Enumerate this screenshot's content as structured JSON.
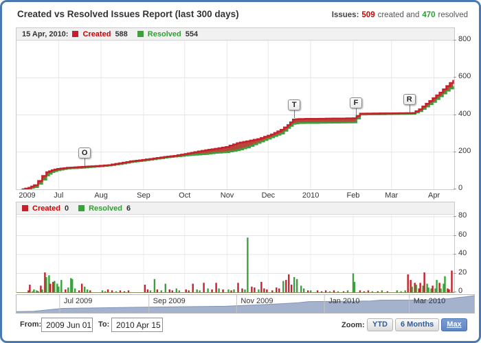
{
  "header": {
    "title": "Created vs Resolved Issues Report (last 300 days)",
    "summary_prefix": "Issues:",
    "created_count": "509",
    "summary_mid": "created and",
    "resolved_count": "470",
    "summary_suffix": "resolved"
  },
  "main_chart": {
    "legend_date": "15 Apr, 2010:",
    "created_label": "Created",
    "created_value": "588",
    "resolved_label": "Resolved",
    "resolved_value": "554"
  },
  "lower_chart": {
    "created_label": "Created",
    "created_value": "0",
    "resolved_label": "Resolved",
    "resolved_value": "6"
  },
  "controls": {
    "from_label": "From:",
    "from_value": "2009 Jun 01",
    "to_label": "To:",
    "to_value": "2010 Apr 15",
    "zoom_label": "Zoom:",
    "zoom_buttons": [
      {
        "label": "YTD",
        "active": false
      },
      {
        "label": "6 Months",
        "active": false
      },
      {
        "label": "Max",
        "active": true
      }
    ]
  },
  "colors": {
    "frame": "#4879b2",
    "created_line": "#c8202b",
    "created_text": "#cc0000",
    "resolved_line": "#3ba13c",
    "resolved_text": "#2f9e33",
    "band_fill": "#b5483b",
    "nav_fill": "#a4b2ce",
    "nav_line": "#8094bb",
    "grid": "#e3e3e3"
  },
  "chart_data": [
    {
      "type": "line",
      "title": "Created vs Resolved cumulative (day offset from 2009 Jun 01)",
      "ylim": [
        0,
        800
      ],
      "yticks": [
        0,
        200,
        400,
        600,
        800
      ],
      "xticks": [
        {
          "label": "2009",
          "day": 7
        },
        {
          "label": "Jul",
          "day": 30
        },
        {
          "label": "Aug",
          "day": 61
        },
        {
          "label": "Sep",
          "day": 92
        },
        {
          "label": "Oct",
          "day": 122
        },
        {
          "label": "Nov",
          "day": 153
        },
        {
          "label": "Dec",
          "day": 183
        },
        {
          "label": "2010",
          "day": 214
        },
        {
          "label": "Feb",
          "day": 245
        },
        {
          "label": "Mar",
          "day": 273
        },
        {
          "label": "Apr",
          "day": 304
        }
      ],
      "grid_month_days": [
        30,
        61,
        92,
        122,
        153,
        183,
        214,
        245,
        273,
        304
      ],
      "series": [
        {
          "name": "Created",
          "points": [
            [
              3,
              0
            ],
            [
              8,
              8
            ],
            [
              12,
              22
            ],
            [
              15,
              45
            ],
            [
              18,
              72
            ],
            [
              21,
              92
            ],
            [
              25,
              103
            ],
            [
              29,
              110
            ],
            [
              36,
              116
            ],
            [
              47,
              121
            ],
            [
              54,
              124
            ],
            [
              60,
              127
            ],
            [
              66,
              130
            ],
            [
              74,
              140
            ],
            [
              82,
              150
            ],
            [
              91,
              158
            ],
            [
              99,
              166
            ],
            [
              107,
              174
            ],
            [
              114,
              180
            ],
            [
              122,
              190
            ],
            [
              129,
              200
            ],
            [
              137,
              210
            ],
            [
              144,
              218
            ],
            [
              152,
              228
            ],
            [
              160,
              248
            ],
            [
              167,
              258
            ],
            [
              175,
              270
            ],
            [
              185,
              295
            ],
            [
              192,
              320
            ],
            [
              197,
              345
            ],
            [
              201,
              375
            ],
            [
              205,
              378
            ],
            [
              245,
              382
            ],
            [
              250,
              407
            ],
            [
              288,
              410
            ],
            [
              293,
              430
            ],
            [
              298,
              460
            ],
            [
              303,
              490
            ],
            [
              308,
              520
            ],
            [
              313,
              555
            ],
            [
              318,
              588
            ]
          ]
        },
        {
          "name": "Resolved",
          "points": [
            [
              3,
              0
            ],
            [
              8,
              4
            ],
            [
              12,
              12
            ],
            [
              15,
              30
            ],
            [
              18,
              52
            ],
            [
              21,
              75
            ],
            [
              25,
              93
            ],
            [
              29,
              103
            ],
            [
              36,
              112
            ],
            [
              47,
              116
            ],
            [
              54,
              121
            ],
            [
              60,
              124
            ],
            [
              66,
              128
            ],
            [
              74,
              136
            ],
            [
              82,
              146
            ],
            [
              91,
              154
            ],
            [
              99,
              162
            ],
            [
              107,
              170
            ],
            [
              114,
              176
            ],
            [
              122,
              182
            ],
            [
              129,
              186
            ],
            [
              137,
              190
            ],
            [
              144,
              196
            ],
            [
              152,
              200
            ],
            [
              160,
              210
            ],
            [
              167,
              225
            ],
            [
              175,
              250
            ],
            [
              185,
              280
            ],
            [
              192,
              300
            ],
            [
              197,
              330
            ],
            [
              201,
              352
            ],
            [
              205,
              356
            ],
            [
              245,
              360
            ],
            [
              250,
              402
            ],
            [
              288,
              406
            ],
            [
              293,
              420
            ],
            [
              298,
              445
            ],
            [
              303,
              470
            ],
            [
              308,
              500
            ],
            [
              313,
              530
            ],
            [
              318,
              554
            ]
          ]
        }
      ],
      "flags": [
        {
          "label": "O",
          "day": 49,
          "value": 120
        },
        {
          "label": "T",
          "day": 202,
          "value": 378
        },
        {
          "label": "F",
          "day": 247,
          "value": 392
        },
        {
          "label": "R",
          "day": 286,
          "value": 410
        }
      ]
    },
    {
      "type": "bar",
      "title": "Daily created/resolved counts (day offset, value, series r=Created g=Resolved)",
      "ylim": [
        0,
        80
      ],
      "yticks": [
        0,
        20,
        40,
        60,
        80
      ],
      "bars": [
        [
          8,
          2,
          "r"
        ],
        [
          9,
          8,
          "r"
        ],
        [
          11,
          1,
          "g"
        ],
        [
          12,
          3,
          "g"
        ],
        [
          14,
          2,
          "g"
        ],
        [
          15,
          1,
          "r"
        ],
        [
          17,
          7,
          "r"
        ],
        [
          18,
          3,
          "g"
        ],
        [
          20,
          21,
          "r"
        ],
        [
          21,
          16,
          "g"
        ],
        [
          23,
          18,
          "g"
        ],
        [
          24,
          9,
          "r"
        ],
        [
          26,
          11,
          "r"
        ],
        [
          27,
          12,
          "g"
        ],
        [
          29,
          9,
          "g"
        ],
        [
          30,
          6,
          "g"
        ],
        [
          32,
          13,
          "g"
        ],
        [
          35,
          3,
          "r"
        ],
        [
          37,
          5,
          "g"
        ],
        [
          39,
          15,
          "g"
        ],
        [
          40,
          14,
          "g"
        ],
        [
          42,
          4,
          "g"
        ],
        [
          45,
          2,
          "r"
        ],
        [
          47,
          9,
          "r"
        ],
        [
          49,
          6,
          "g"
        ],
        [
          51,
          3,
          "g"
        ],
        [
          53,
          2,
          "r"
        ],
        [
          62,
          2,
          "g"
        ],
        [
          64,
          1,
          "g"
        ],
        [
          66,
          3,
          "r"
        ],
        [
          69,
          2,
          "r"
        ],
        [
          72,
          1,
          "g"
        ],
        [
          75,
          2,
          "r"
        ],
        [
          78,
          1,
          "r"
        ],
        [
          81,
          2,
          "r"
        ],
        [
          93,
          8,
          "r"
        ],
        [
          95,
          3,
          "r"
        ],
        [
          97,
          2,
          "g"
        ],
        [
          100,
          14,
          "g"
        ],
        [
          102,
          3,
          "r"
        ],
        [
          105,
          2,
          "g"
        ],
        [
          108,
          9,
          "g"
        ],
        [
          111,
          3,
          "r"
        ],
        [
          113,
          2,
          "r"
        ],
        [
          116,
          4,
          "g"
        ],
        [
          118,
          2,
          "g"
        ],
        [
          123,
          3,
          "r"
        ],
        [
          125,
          2,
          "r"
        ],
        [
          128,
          9,
          "r"
        ],
        [
          131,
          3,
          "g"
        ],
        [
          133,
          2,
          "g"
        ],
        [
          136,
          10,
          "r"
        ],
        [
          139,
          4,
          "g"
        ],
        [
          142,
          3,
          "r"
        ],
        [
          145,
          10,
          "r"
        ],
        [
          147,
          4,
          "g"
        ],
        [
          150,
          3,
          "r"
        ],
        [
          154,
          3,
          "g"
        ],
        [
          156,
          2,
          "r"
        ],
        [
          158,
          3,
          "g"
        ],
        [
          161,
          10,
          "r"
        ],
        [
          164,
          4,
          "r"
        ],
        [
          166,
          3,
          "g"
        ],
        [
          168,
          58,
          "g"
        ],
        [
          171,
          6,
          "r"
        ],
        [
          173,
          5,
          "r"
        ],
        [
          176,
          3,
          "g"
        ],
        [
          178,
          11,
          "r"
        ],
        [
          180,
          4,
          "r"
        ],
        [
          182,
          3,
          "r"
        ],
        [
          186,
          2,
          "r"
        ],
        [
          189,
          5,
          "r"
        ],
        [
          191,
          4,
          "r"
        ],
        [
          194,
          12,
          "g"
        ],
        [
          196,
          13,
          "r"
        ],
        [
          198,
          19,
          "r"
        ],
        [
          200,
          8,
          "r"
        ],
        [
          202,
          16,
          "g"
        ],
        [
          204,
          14,
          "g"
        ],
        [
          207,
          7,
          "g"
        ],
        [
          209,
          4,
          "g"
        ],
        [
          212,
          2,
          "r"
        ],
        [
          214,
          2,
          "g"
        ],
        [
          219,
          2,
          "r"
        ],
        [
          222,
          1,
          "r"
        ],
        [
          225,
          2,
          "r"
        ],
        [
          228,
          1,
          "g"
        ],
        [
          231,
          2,
          "r"
        ],
        [
          234,
          1,
          "g"
        ],
        [
          238,
          1,
          "r"
        ],
        [
          241,
          2,
          "g"
        ],
        [
          245,
          20,
          "g"
        ],
        [
          246,
          11,
          "g"
        ],
        [
          250,
          2,
          "r"
        ],
        [
          253,
          1,
          "r"
        ],
        [
          256,
          2,
          "r"
        ],
        [
          259,
          1,
          "g"
        ],
        [
          263,
          1,
          "r"
        ],
        [
          266,
          2,
          "g"
        ],
        [
          270,
          1,
          "r"
        ],
        [
          277,
          2,
          "g"
        ],
        [
          280,
          1,
          "g"
        ],
        [
          283,
          2,
          "g"
        ],
        [
          285,
          19,
          "r"
        ],
        [
          287,
          13,
          "r"
        ],
        [
          288,
          6,
          "g"
        ],
        [
          290,
          10,
          "r"
        ],
        [
          291,
          8,
          "g"
        ],
        [
          293,
          4,
          "r"
        ],
        [
          294,
          10,
          "r"
        ],
        [
          296,
          7,
          "g"
        ],
        [
          297,
          21,
          "r"
        ],
        [
          299,
          9,
          "g"
        ],
        [
          300,
          5,
          "g"
        ],
        [
          302,
          4,
          "g"
        ],
        [
          303,
          7,
          "r"
        ],
        [
          305,
          4,
          "g"
        ],
        [
          306,
          13,
          "g"
        ],
        [
          308,
          10,
          "r"
        ],
        [
          309,
          4,
          "g"
        ],
        [
          311,
          9,
          "g"
        ],
        [
          312,
          17,
          "g"
        ],
        [
          314,
          4,
          "r"
        ],
        [
          315,
          3,
          "r"
        ],
        [
          317,
          23,
          "r"
        ]
      ]
    },
    {
      "type": "area",
      "title": "Navigator overview (day offset, relative height 0-1)",
      "labels": [
        {
          "text": "Jul 2009",
          "day": 30
        },
        {
          "text": "Sep 2009",
          "day": 92
        },
        {
          "text": "Nov 2009",
          "day": 153
        },
        {
          "text": "Jan 2010",
          "day": 214
        },
        {
          "text": "Mar 2010",
          "day": 273
        }
      ],
      "points": [
        [
          0,
          0.07
        ],
        [
          12,
          0.09
        ],
        [
          22,
          0.17
        ],
        [
          32,
          0.25
        ],
        [
          48,
          0.27
        ],
        [
          65,
          0.29
        ],
        [
          85,
          0.31
        ],
        [
          105,
          0.33
        ],
        [
          125,
          0.35
        ],
        [
          145,
          0.37
        ],
        [
          158,
          0.41
        ],
        [
          172,
          0.46
        ],
        [
          186,
          0.52
        ],
        [
          196,
          0.57
        ],
        [
          203,
          0.63
        ],
        [
          218,
          0.64
        ],
        [
          246,
          0.66
        ],
        [
          253,
          0.71
        ],
        [
          286,
          0.72
        ],
        [
          295,
          0.76
        ],
        [
          301,
          0.8
        ],
        [
          306,
          0.85
        ],
        [
          311,
          0.89
        ],
        [
          316,
          0.94
        ],
        [
          318,
          0.96
        ]
      ]
    }
  ]
}
